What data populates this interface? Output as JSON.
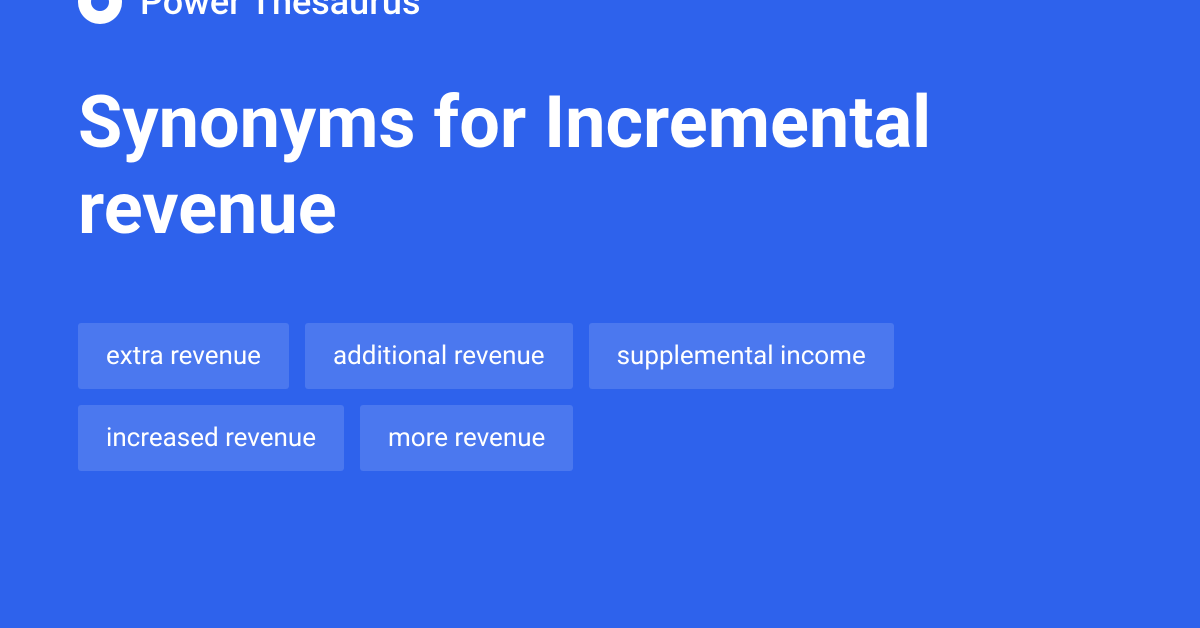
{
  "brand": {
    "name": "Power Thesaurus"
  },
  "page": {
    "title": "Synonyms for Incremental revenue"
  },
  "synonyms": [
    "extra revenue",
    "additional revenue",
    "supplemental income",
    "increased revenue",
    "more revenue"
  ],
  "colors": {
    "background": "#2e62ec",
    "chip_background": "#4b78ef",
    "text": "#ffffff"
  }
}
